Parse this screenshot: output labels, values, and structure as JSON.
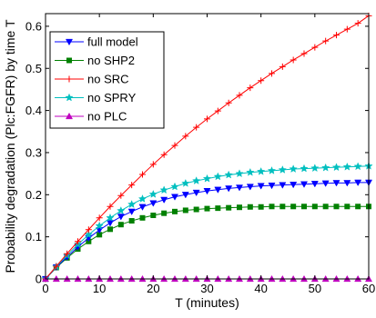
{
  "chart_data": {
    "type": "line",
    "title": "",
    "xlabel": "T (minutes)",
    "ylabel": "Probability degradation (Plc:FGFR) by time T",
    "xlim": [
      0,
      60
    ],
    "ylim": [
      0,
      0.63
    ],
    "xticks": [
      0,
      10,
      20,
      30,
      40,
      50,
      60
    ],
    "yticks": [
      0,
      0.1,
      0.2,
      0.3,
      0.4,
      0.5,
      0.6
    ],
    "xtick_labels": [
      "0",
      "10",
      "20",
      "30",
      "40",
      "50",
      "60"
    ],
    "ytick_labels": [
      "0",
      "0.1",
      "0.2",
      "0.3",
      "0.4",
      "0.5",
      "0.6"
    ],
    "grid": false,
    "legend_position": "top-left",
    "x": [
      0,
      2,
      4,
      6,
      8,
      10,
      12,
      14,
      16,
      18,
      20,
      22,
      24,
      26,
      28,
      30,
      32,
      34,
      36,
      38,
      40,
      42,
      44,
      46,
      48,
      50,
      52,
      54,
      56,
      58,
      60
    ],
    "series": [
      {
        "name": "full model",
        "color": "#0000ff",
        "marker": "triangle-down",
        "values": [
          0,
          0.028,
          0.052,
          0.076,
          0.097,
          0.116,
          0.133,
          0.148,
          0.16,
          0.171,
          0.18,
          0.188,
          0.195,
          0.2,
          0.205,
          0.209,
          0.212,
          0.215,
          0.217,
          0.219,
          0.221,
          0.222,
          0.223,
          0.224,
          0.225,
          0.226,
          0.227,
          0.228,
          0.228,
          0.229,
          0.229
        ]
      },
      {
        "name": "no SHP2",
        "color": "#008000",
        "marker": "square",
        "values": [
          0,
          0.027,
          0.05,
          0.071,
          0.089,
          0.105,
          0.118,
          0.129,
          0.138,
          0.145,
          0.151,
          0.156,
          0.16,
          0.163,
          0.165,
          0.167,
          0.168,
          0.169,
          0.17,
          0.171,
          0.171,
          0.172,
          0.172,
          0.172,
          0.172,
          0.172,
          0.172,
          0.172,
          0.172,
          0.172,
          0.172
        ]
      },
      {
        "name": "no SRC",
        "color": "#ff0000",
        "marker": "plus",
        "values": [
          0,
          0.03,
          0.06,
          0.089,
          0.117,
          0.145,
          0.172,
          0.198,
          0.223,
          0.248,
          0.272,
          0.295,
          0.317,
          0.339,
          0.36,
          0.38,
          0.399,
          0.418,
          0.436,
          0.454,
          0.471,
          0.488,
          0.504,
          0.52,
          0.535,
          0.55,
          0.565,
          0.579,
          0.593,
          0.607,
          0.625
        ]
      },
      {
        "name": "no SPRY",
        "color": "#00bfbf",
        "marker": "star",
        "values": [
          0,
          0.029,
          0.056,
          0.082,
          0.105,
          0.126,
          0.145,
          0.162,
          0.177,
          0.19,
          0.201,
          0.211,
          0.219,
          0.227,
          0.233,
          0.238,
          0.243,
          0.247,
          0.25,
          0.253,
          0.255,
          0.257,
          0.259,
          0.261,
          0.262,
          0.263,
          0.264,
          0.265,
          0.266,
          0.267,
          0.268
        ]
      },
      {
        "name": "no PLC",
        "color": "#bf00bf",
        "marker": "triangle-up",
        "values": [
          0,
          0,
          0,
          0,
          0,
          0,
          0,
          0,
          0,
          0,
          0,
          0,
          0,
          0,
          0,
          0,
          0,
          0,
          0,
          0,
          0,
          0,
          0,
          0,
          0,
          0,
          0,
          0,
          0,
          0,
          0
        ]
      }
    ]
  }
}
